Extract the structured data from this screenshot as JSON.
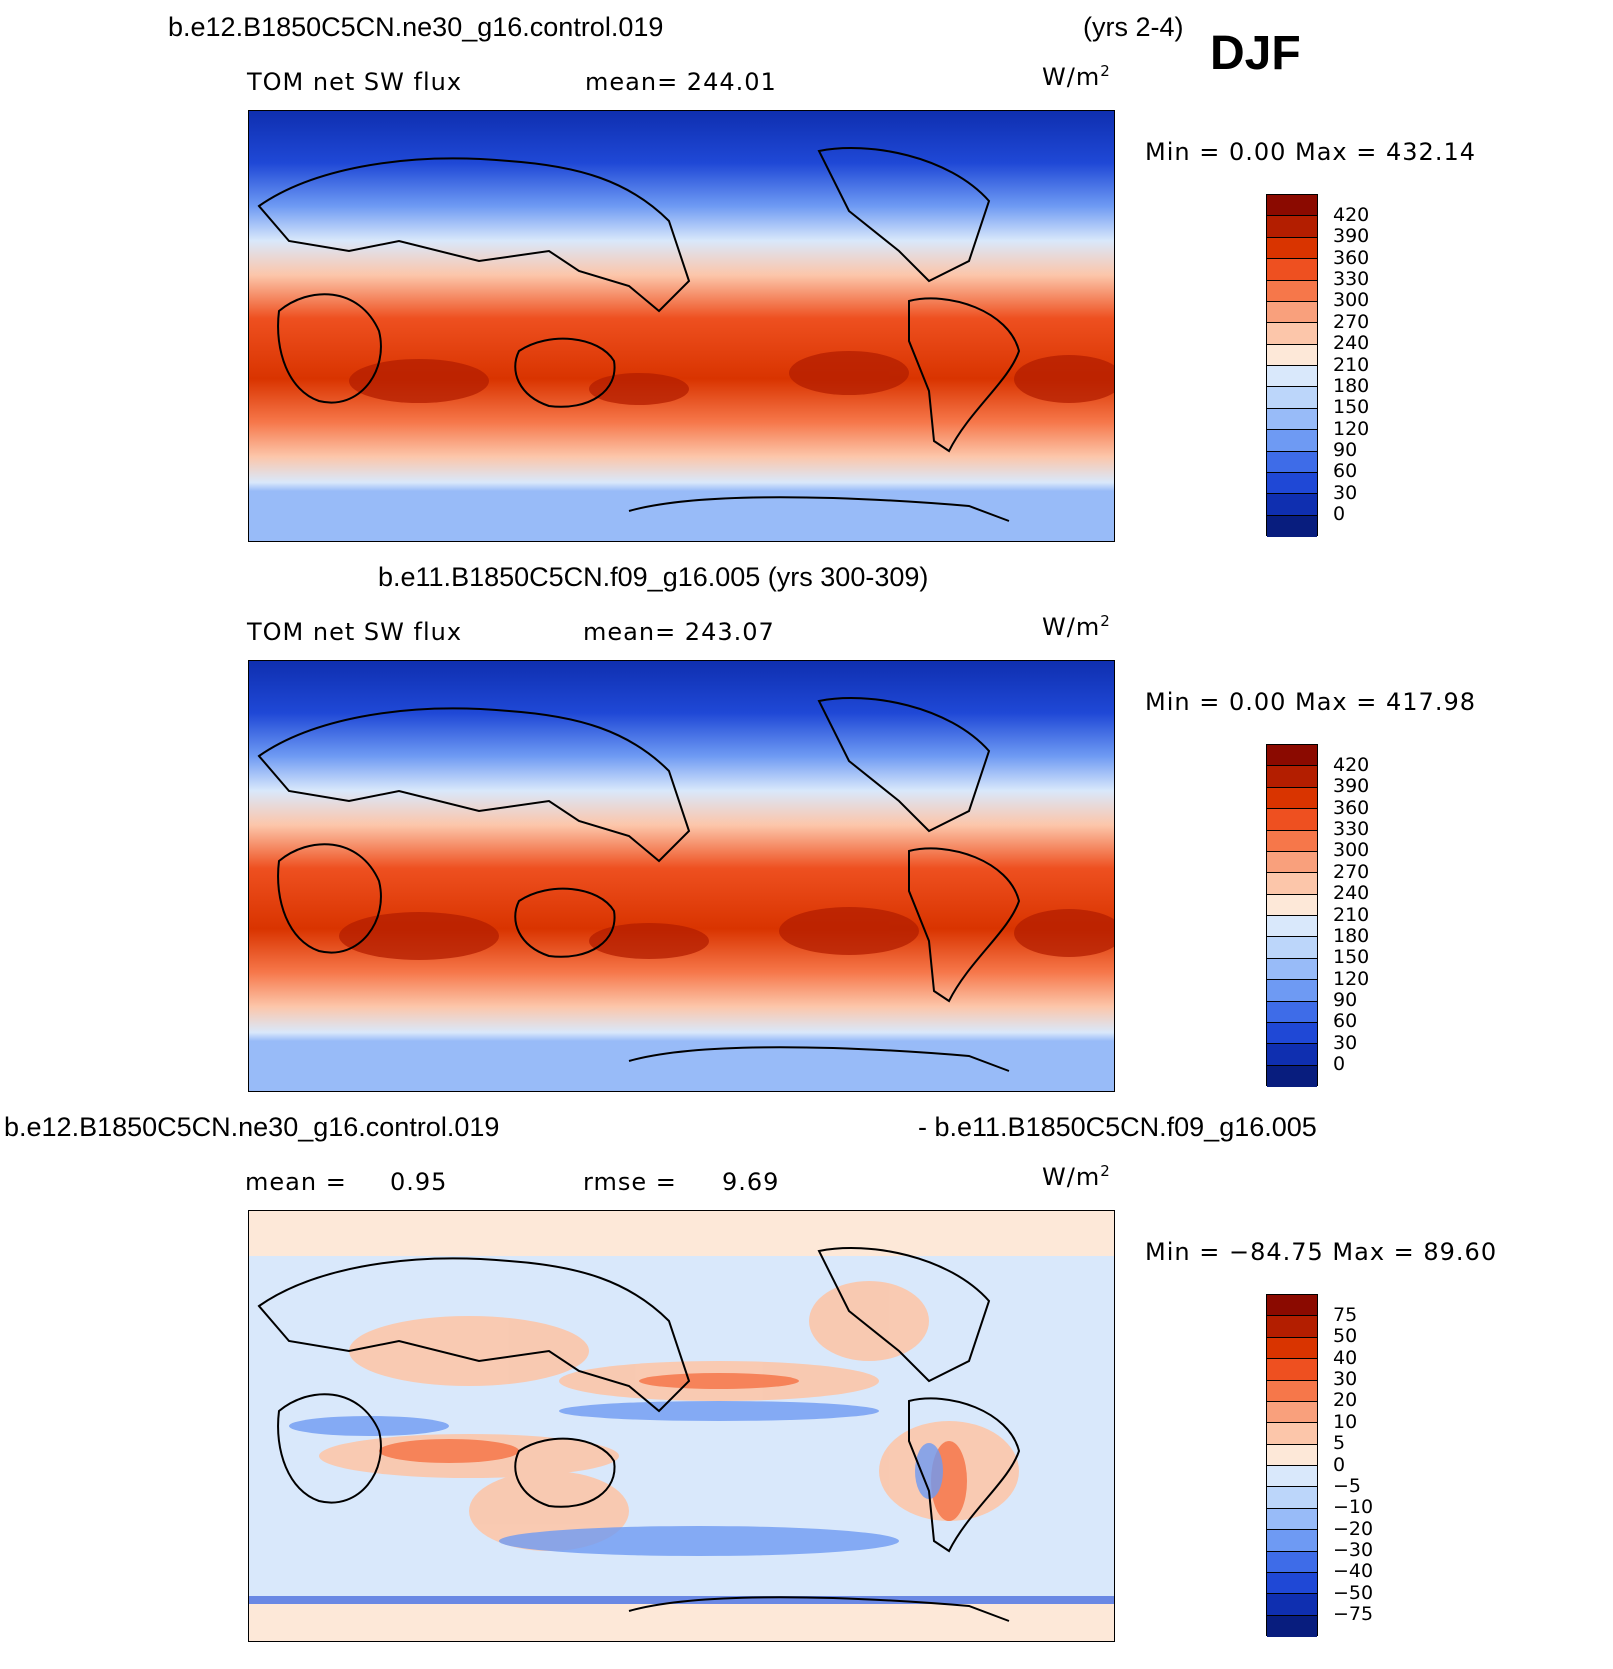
{
  "header": {
    "case1": "b.e12.B1850C5CN.ne30_g16.control.019",
    "years1": "(yrs 2-4)",
    "season": "DJF"
  },
  "panels": [
    {
      "id": "top",
      "variable": "TOM net SW flux",
      "stat1": "mean=  244.01",
      "units": "W/m",
      "units_exp": "2",
      "minmax": "Min =    0.00 Max =  432.14",
      "levels": [
        "420",
        "390",
        "360",
        "330",
        "300",
        "270",
        "240",
        "210",
        "180",
        "150",
        "120",
        "90",
        "60",
        "30",
        "0"
      ]
    },
    {
      "id": "middle",
      "title": "b.e11.B1850C5CN.f09_g16.005 (yrs 300-309)",
      "variable": "TOM net SW flux",
      "stat1": "mean=  243.07",
      "units": "W/m",
      "units_exp": "2",
      "minmax": "Min =    0.00 Max =  417.98",
      "levels": [
        "420",
        "390",
        "360",
        "330",
        "300",
        "270",
        "240",
        "210",
        "180",
        "150",
        "120",
        "90",
        "60",
        "30",
        "0"
      ]
    },
    {
      "id": "bottom",
      "title_left": "b.e12.B1850C5CN.ne30_g16.control.019",
      "title_right": "- b.e11.B1850C5CN.f09_g16.005",
      "mean_label": "mean =",
      "mean_value": "0.95",
      "rmse_label": "rmse =",
      "rmse_value": "9.69",
      "units": "W/m",
      "units_exp": "2",
      "minmax": "Min = −84.75 Max =   89.60",
      "levels": [
        "75",
        "50",
        "40",
        "30",
        "20",
        "10",
        "5",
        "0",
        "−5",
        "−10",
        "−20",
        "−30",
        "−40",
        "−50",
        "−75"
      ]
    }
  ],
  "colors": {
    "abs_scale": [
      "#8b0a00",
      "#b31e00",
      "#d93400",
      "#ee5020",
      "#f6774a",
      "#f9a07c",
      "#fcc6aa",
      "#fde8d8",
      "#d9e8fb",
      "#bcd6fa",
      "#98bbf8",
      "#6e9af3",
      "#3e6ce8",
      "#1f48d6",
      "#0f2fb0",
      "#081d7e"
    ],
    "diff_scale": [
      "#8b0a00",
      "#b31e00",
      "#d93400",
      "#ee5020",
      "#f6774a",
      "#f9a07c",
      "#fcc6aa",
      "#fde8d8",
      "#d9e8fb",
      "#bcd6fa",
      "#98bbf8",
      "#6e9af3",
      "#3e6ce8",
      "#1f48d6",
      "#0f2fb0",
      "#081d7e"
    ],
    "coast": "#000000"
  }
}
